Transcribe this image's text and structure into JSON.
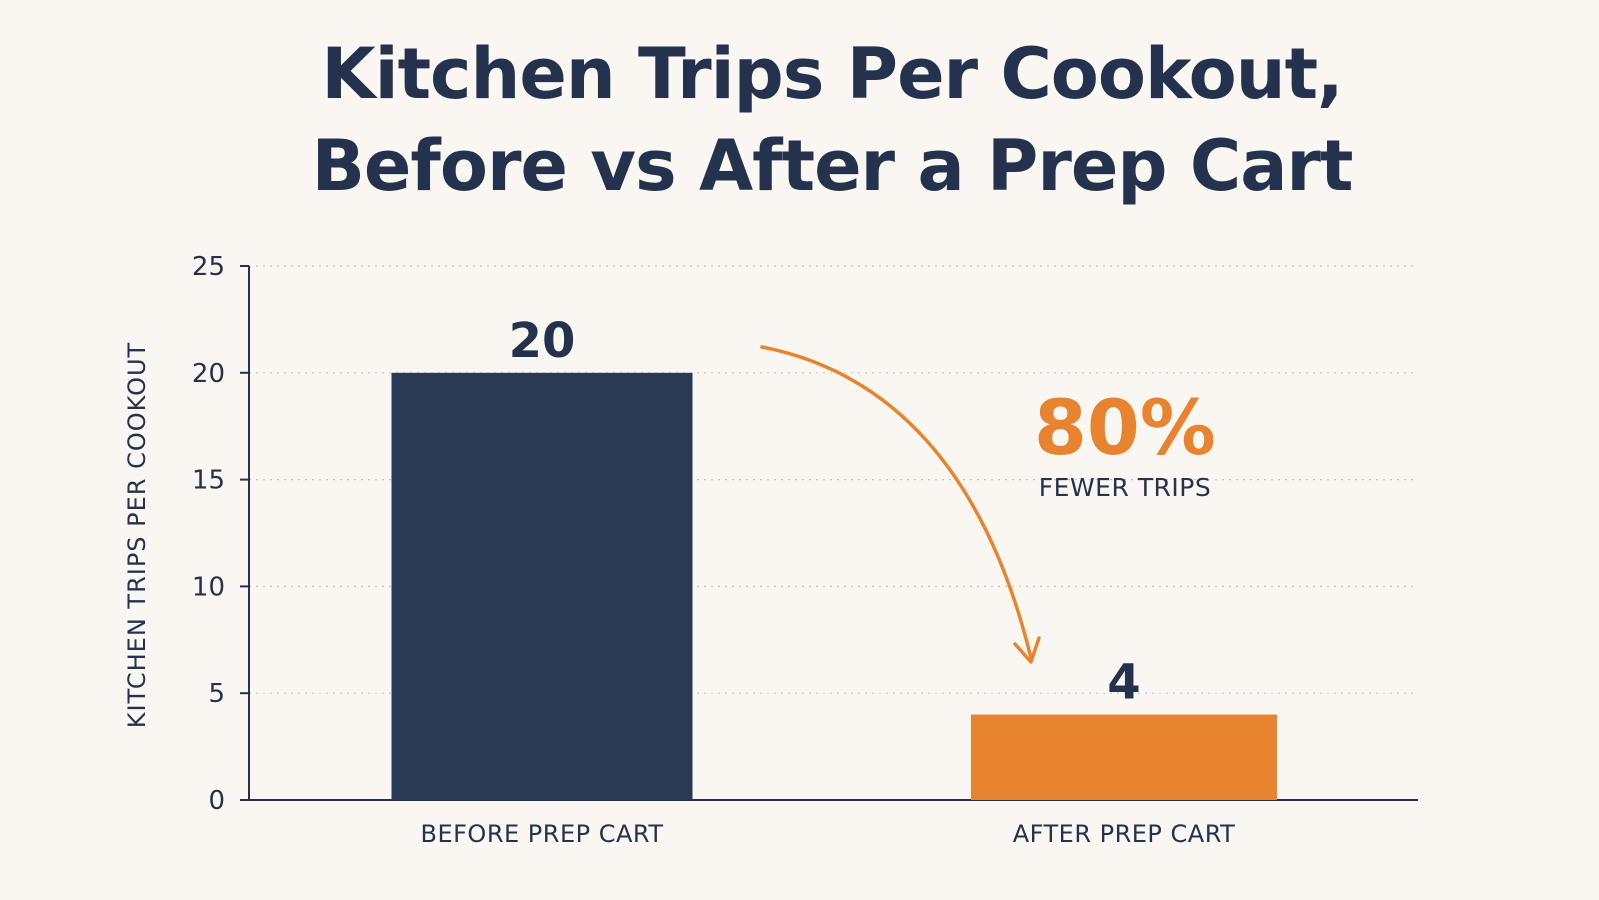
{
  "chart_data": {
    "type": "bar",
    "title_lines": [
      "Kitchen Trips Per Cookout,",
      "Before vs After a Prep Cart"
    ],
    "ylabel": "KITCHEN TRIPS PER COOKOUT",
    "xlabel": "",
    "ylim": [
      0,
      25
    ],
    "yticks": [
      0,
      5,
      10,
      15,
      20,
      25
    ],
    "categories": [
      "BEFORE PREP CART",
      "AFTER PREP CART"
    ],
    "values": [
      20,
      4
    ],
    "bar_colors": [
      "#2a3a55",
      "#e8842e"
    ],
    "value_labels": [
      "20",
      "4"
    ],
    "grid": "horizontal-dotted",
    "annotation": {
      "value": "80%",
      "text": "FEWER TRIPS",
      "color": "#e88430",
      "arrow_from": "before-bar",
      "arrow_to": "after-bar"
    }
  }
}
